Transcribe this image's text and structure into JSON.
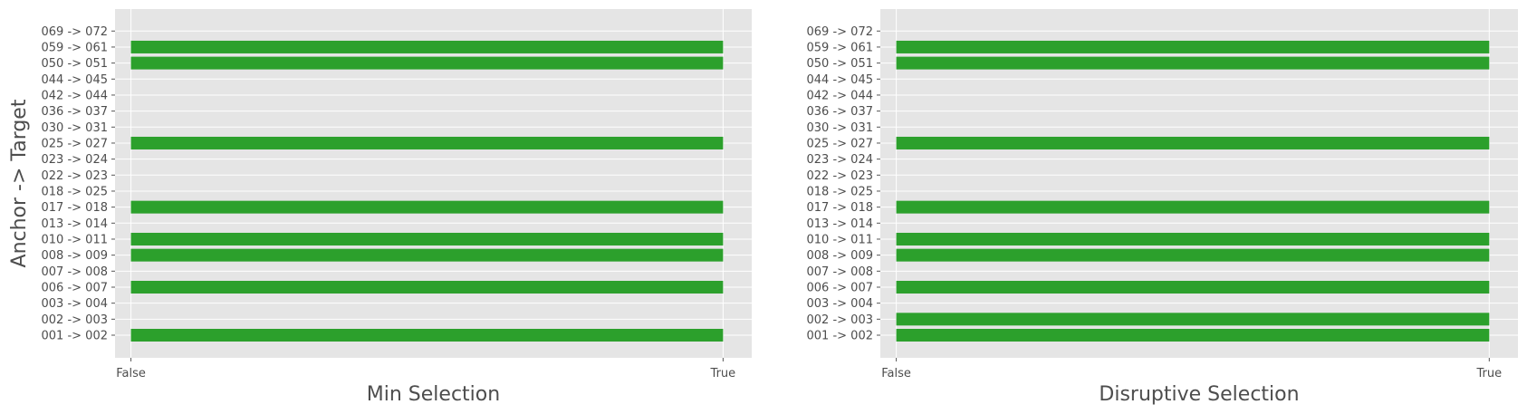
{
  "chart_data": [
    {
      "type": "bar",
      "orientation": "horizontal",
      "title": "",
      "xlabel": "Min Selection",
      "ylabel": "Anchor -> Target",
      "x_tick_labels": [
        "False",
        "True"
      ],
      "xlim": [
        0,
        1
      ],
      "categories": [
        "001 -> 002",
        "002 -> 003",
        "003 -> 004",
        "006 -> 007",
        "007 -> 008",
        "008 -> 009",
        "010 -> 011",
        "013 -> 014",
        "017 -> 018",
        "018 -> 025",
        "022 -> 023",
        "023 -> 024",
        "025 -> 027",
        "030 -> 031",
        "036 -> 037",
        "042 -> 044",
        "044 -> 045",
        "050 -> 051",
        "059 -> 061",
        "069 -> 072"
      ],
      "values": [
        1,
        0,
        0,
        1,
        0,
        1,
        1,
        0,
        1,
        0,
        0,
        0,
        1,
        0,
        0,
        0,
        0,
        1,
        1,
        0
      ],
      "bar_color": "#2ca02c",
      "grid": true,
      "legend": "none"
    },
    {
      "type": "bar",
      "orientation": "horizontal",
      "title": "",
      "xlabel": "Disruptive Selection",
      "ylabel": "",
      "x_tick_labels": [
        "False",
        "True"
      ],
      "xlim": [
        0,
        1
      ],
      "categories": [
        "001 -> 002",
        "002 -> 003",
        "003 -> 004",
        "006 -> 007",
        "007 -> 008",
        "008 -> 009",
        "010 -> 011",
        "013 -> 014",
        "017 -> 018",
        "018 -> 025",
        "022 -> 023",
        "023 -> 024",
        "025 -> 027",
        "030 -> 031",
        "036 -> 037",
        "042 -> 044",
        "044 -> 045",
        "050 -> 051",
        "059 -> 061",
        "069 -> 072"
      ],
      "values": [
        1,
        1,
        0,
        1,
        0,
        1,
        1,
        0,
        1,
        0,
        0,
        0,
        1,
        0,
        0,
        0,
        0,
        1,
        1,
        0
      ],
      "bar_color": "#2ca02c",
      "grid": true,
      "legend": "none"
    }
  ]
}
